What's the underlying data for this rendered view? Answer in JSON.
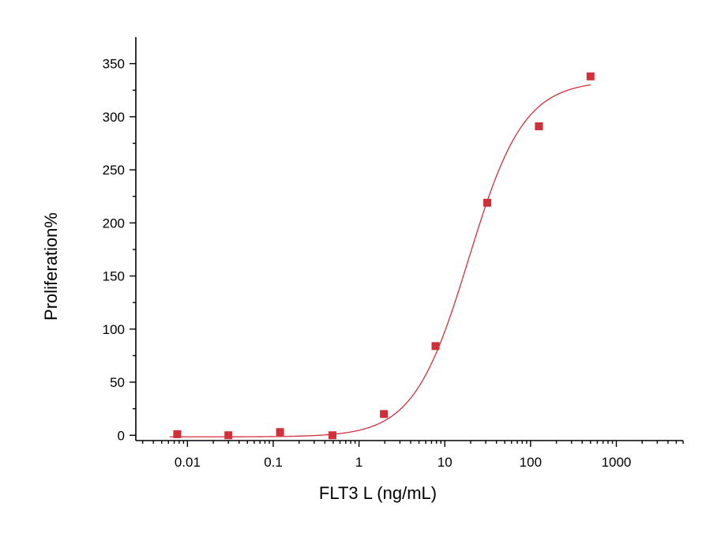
{
  "chart_data": {
    "type": "scatter",
    "title": "",
    "xlabel": "FLT3 L (ng/mL)",
    "ylabel": "Proliferation%",
    "x_scale": "log",
    "xlim": [
      0.0025,
      6000
    ],
    "ylim": [
      -5,
      375
    ],
    "x_ticks": [
      0.01,
      0.1,
      1,
      10,
      100,
      1000
    ],
    "x_tick_labels": [
      "0.01",
      "0.1",
      "1",
      "10",
      "100",
      "1000"
    ],
    "y_ticks": [
      0,
      50,
      100,
      150,
      200,
      250,
      300,
      350
    ],
    "y_tick_labels": [
      "0",
      "50",
      "100",
      "150",
      "200",
      "250",
      "300",
      "350"
    ],
    "grid": false,
    "series": [
      {
        "marker": "square",
        "color": "#d32f3a",
        "x": [
          0.0076,
          0.03,
          0.12,
          0.49,
          1.95,
          7.8,
          31.25,
          125,
          500
        ],
        "y": [
          1,
          0,
          3,
          0,
          20,
          84,
          219,
          291,
          338
        ]
      }
    ],
    "fit_curve": {
      "type": "4PL",
      "color": "#d32f3a",
      "bottom": -1.5,
      "top": 334,
      "ec50": 19,
      "hill": 1.35
    }
  }
}
